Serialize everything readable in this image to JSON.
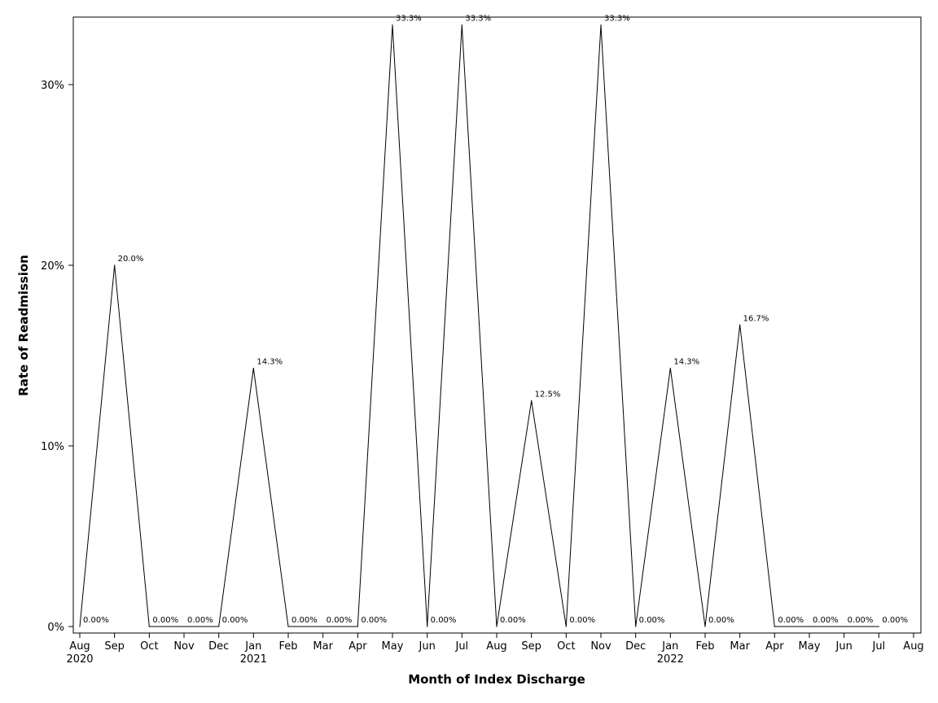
{
  "chart_data": {
    "type": "line",
    "title": "",
    "xlabel": "Month of Index Discharge",
    "ylabel": "Rate of Readmission",
    "ylim": [
      -0.005,
      0.3345
    ],
    "xlim": [
      "2020-08",
      "2022-08"
    ],
    "grid": false,
    "legend": "none",
    "line_color": "#000000",
    "x_ticks": [
      "2020-08",
      "2020-09",
      "2020-10",
      "2020-11",
      "2020-12",
      "2021-01",
      "2021-02",
      "2021-03",
      "2021-04",
      "2021-05",
      "2021-06",
      "2021-07",
      "2021-08",
      "2021-09",
      "2021-10",
      "2021-11",
      "2021-12",
      "2022-01",
      "2022-02",
      "2022-03",
      "2022-04",
      "2022-05",
      "2022-06",
      "2022-07",
      "2022-08"
    ],
    "x_tick_labels": [
      "Aug",
      "Sep",
      "Oct",
      "Nov",
      "Dec",
      "Jan",
      "Feb",
      "Mar",
      "Apr",
      "May",
      "Jun",
      "Jul",
      "Aug",
      "Sep",
      "Oct",
      "Nov",
      "Dec",
      "Jan",
      "Feb",
      "Mar",
      "Apr",
      "May",
      "Jun",
      "Jul",
      "Aug"
    ],
    "year_labels": [
      {
        "x": "2020-08",
        "label": "2020"
      },
      {
        "x": "2021-01",
        "label": "2021"
      },
      {
        "x": "2022-01",
        "label": "2022"
      }
    ],
    "y_ticks": [
      0,
      0.1,
      0.2,
      0.3
    ],
    "y_tick_labels": [
      "0%",
      "10%",
      "20%",
      "30%"
    ],
    "series": [
      {
        "x": [
          "2020-08",
          "2020-09",
          "2020-10",
          "2020-11",
          "2020-12",
          "2021-01",
          "2021-02",
          "2021-03",
          "2021-04",
          "2021-05",
          "2021-06",
          "2021-07",
          "2021-08",
          "2021-09",
          "2021-10",
          "2021-11",
          "2021-12",
          "2022-01",
          "2022-02",
          "2022-03",
          "2022-04",
          "2022-05",
          "2022-06",
          "2022-07"
        ],
        "values": [
          0,
          0.2,
          0,
          0,
          0,
          0.143,
          0,
          0,
          0,
          0.333,
          0,
          0.333,
          0,
          0.125,
          0,
          0.333,
          0,
          0.143,
          0,
          0.167,
          0,
          0,
          0,
          0
        ],
        "labels": [
          "0.00%",
          "20.0%",
          "0.00%",
          "0.00%",
          "0.00%",
          "14.3%",
          "0.00%",
          "0.00%",
          "0.00%",
          "33.3%",
          "0.00%",
          "33.3%",
          "0.00%",
          "12.5%",
          "0.00%",
          "33.3%",
          "0.00%",
          "14.3%",
          "0.00%",
          "16.7%",
          "0.00%",
          "0.00%",
          "0.00%",
          "0.00%"
        ]
      }
    ]
  }
}
